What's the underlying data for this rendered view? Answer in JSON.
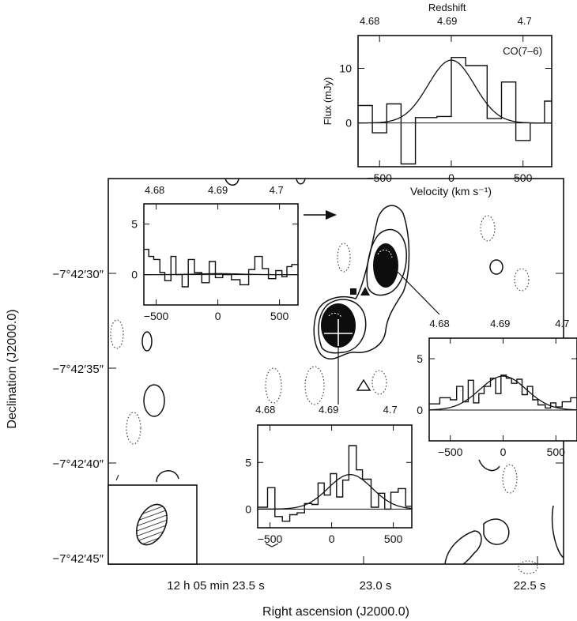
{
  "map": {
    "xlabel": "Right ascension (J2000.0)",
    "ylabel": "Declination (J2000.0)",
    "dec_ticks": [
      "−7°42′30″",
      "−7°42′35″",
      "−7°42′40″",
      "−7°42′45″"
    ],
    "ra_ticks": [
      "12 h 05 min 23.5 s",
      "23.0 s",
      "22.5 s"
    ]
  },
  "chart_data": [
    {
      "type": "line",
      "id": "co76",
      "title": "CO(7–6)",
      "top_axis_label": "Redshift",
      "top_ticks": [
        "4.68",
        "4.69",
        "4.7"
      ],
      "xlabel": "Velocity (km s⁻¹)",
      "ylabel": "Flux (mJy)",
      "xlim": [
        -650,
        700
      ],
      "ylim": [
        -8,
        16
      ],
      "xticks": [
        -500,
        0,
        500
      ],
      "yticks": [
        0,
        10
      ],
      "step_edges": [
        -650,
        -550,
        -450,
        -350,
        -250,
        -100,
        0,
        100,
        250,
        350,
        450,
        550,
        650,
        700
      ],
      "step_values": [
        3.2,
        -1.8,
        3.5,
        -7.5,
        1.0,
        1.2,
        12.0,
        10.5,
        0.8,
        7.5,
        -3.2,
        0.0,
        4.0
      ],
      "fit": {
        "amplitude": 11.5,
        "center": 0,
        "fwhm": 380
      }
    },
    {
      "type": "line",
      "id": "north_component",
      "top_ticks": [
        "4.68",
        "4.69",
        "4.7"
      ],
      "xlim": [
        -600,
        650
      ],
      "ylim": [
        -3,
        7
      ],
      "xticks": [
        -500,
        0,
        500
      ],
      "yticks": [
        0,
        5
      ],
      "step_edges": [
        -600,
        -560,
        -520,
        -470,
        -430,
        -380,
        -340,
        -290,
        -240,
        -190,
        -130,
        -70,
        -20,
        40,
        110,
        180,
        250,
        300,
        360,
        410,
        470,
        520,
        560,
        600,
        650
      ],
      "step_values": [
        2.5,
        1.8,
        1.5,
        0.2,
        -0.6,
        1.8,
        0.0,
        -1.2,
        1.5,
        0.2,
        -0.8,
        1.3,
        -0.3,
        0.0,
        -0.5,
        -1.0,
        0.5,
        1.8,
        0.6,
        -0.4,
        0.4,
        -0.2,
        0.8,
        1.0
      ],
      "fit": {
        "amplitude": 0.1,
        "center": 0,
        "fwhm": 400
      }
    },
    {
      "type": "line",
      "id": "east_component",
      "top_ticks": [
        "4.68",
        "4.69",
        "4.7"
      ],
      "xlim": [
        -700,
        700
      ],
      "ylim": [
        -3,
        7
      ],
      "xticks": [
        -500,
        0,
        500
      ],
      "yticks": [
        0,
        5
      ],
      "step_edges": [
        -700,
        -600,
        -500,
        -440,
        -380,
        -330,
        -280,
        -230,
        -180,
        -120,
        -70,
        -20,
        30,
        80,
        130,
        180,
        230,
        280,
        330,
        400,
        450,
        500,
        560,
        640,
        700
      ],
      "step_values": [
        0.6,
        1.2,
        1.0,
        2.3,
        0.8,
        2.9,
        0.7,
        1.6,
        2.3,
        3.1,
        1.6,
        3.4,
        3.1,
        2.6,
        3.0,
        1.5,
        2.3,
        1.0,
        0.5,
        0.2,
        0.7,
        0.3,
        0.8,
        1.2
      ],
      "fit": {
        "amplitude": 3.3,
        "center": 0,
        "fwhm": 520
      }
    },
    {
      "type": "line",
      "id": "south_component",
      "top_ticks": [
        "4.68",
        "4.69",
        "4.7"
      ],
      "xlim": [
        -600,
        650
      ],
      "ylim": [
        -2,
        9
      ],
      "xticks": [
        -500,
        0,
        500
      ],
      "yticks": [
        0,
        5
      ],
      "step_edges": [
        -600,
        -520,
        -460,
        -400,
        -340,
        -280,
        -220,
        -160,
        -110,
        -60,
        -10,
        40,
        90,
        140,
        200,
        250,
        320,
        380,
        430,
        480,
        540,
        600,
        650
      ],
      "step_values": [
        0.2,
        2.3,
        -0.8,
        -1.3,
        -0.6,
        -0.4,
        0.6,
        0.5,
        2.8,
        1.5,
        3.8,
        1.3,
        3.1,
        6.8,
        4.2,
        3.2,
        0.2,
        1.7,
        0.0,
        1.8,
        2.2,
        0.3
      ],
      "fit": {
        "amplitude": 3.7,
        "center": 150,
        "fwhm": 420
      }
    }
  ]
}
